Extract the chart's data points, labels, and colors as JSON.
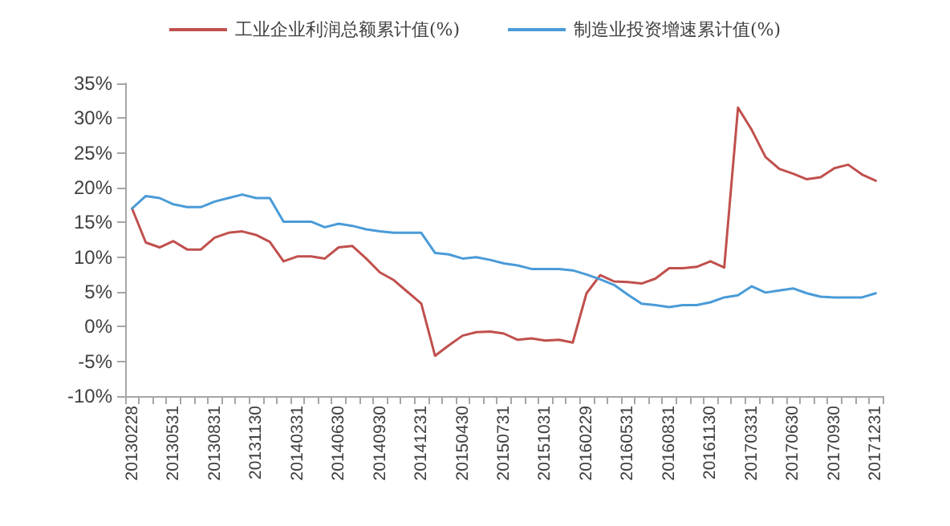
{
  "chart_data": {
    "type": "line",
    "categories": [
      "20130228",
      null,
      null,
      "20130531",
      null,
      null,
      "20130831",
      null,
      null,
      "20131130",
      null,
      null,
      "20140331",
      null,
      null,
      "20140630",
      null,
      null,
      "20140930",
      null,
      null,
      "20141231",
      null,
      null,
      "20150430",
      null,
      null,
      "20150731",
      null,
      null,
      "20151031",
      null,
      null,
      "20160229",
      null,
      null,
      "20160531",
      null,
      null,
      "20160831",
      null,
      null,
      "20161130",
      null,
      null,
      "20170331",
      null,
      null,
      "20170630",
      null,
      null,
      "20170930",
      null,
      null,
      "20171231"
    ],
    "series": [
      {
        "name": "工业企业利润总额累计值(%)",
        "color": "#c0504d",
        "values": [
          17,
          12.1,
          11.4,
          12.3,
          11.1,
          11.1,
          12.8,
          13.5,
          13.7,
          13.2,
          12.2,
          9.4,
          10.1,
          10.1,
          9.8,
          11.4,
          11.6,
          9.8,
          7.8,
          6.7,
          5.0,
          3.3,
          -4.2,
          -2.7,
          -1.3,
          -0.8,
          -0.7,
          -1.0,
          -1.9,
          -1.7,
          -2.0,
          -1.9,
          -2.3,
          4.8,
          7.4,
          6.5,
          6.4,
          6.2,
          6.9,
          8.4,
          8.4,
          8.6,
          9.4,
          8.5,
          31.5,
          28.3,
          24.4,
          22.7,
          22.0,
          21.2,
          21.5,
          22.8,
          23.3,
          21.9,
          21.0
        ]
      },
      {
        "name": "制造业投资增速累计值(%)",
        "color": "#4a9bd8",
        "values": [
          17,
          18.8,
          18.5,
          17.6,
          17.2,
          17.2,
          18.0,
          18.5,
          19.0,
          18.5,
          18.5,
          15.1,
          15.1,
          15.1,
          14.3,
          14.8,
          14.5,
          14.0,
          13.7,
          13.5,
          13.5,
          13.5,
          10.6,
          10.4,
          9.8,
          10.0,
          9.6,
          9.1,
          8.8,
          8.3,
          8.3,
          8.3,
          8.1,
          7.5,
          6.8,
          6.0,
          4.6,
          3.3,
          3.1,
          2.8,
          3.1,
          3.1,
          3.5,
          4.2,
          4.5,
          5.8,
          4.9,
          5.2,
          5.5,
          4.8,
          4.3,
          4.2,
          4.2,
          4.2,
          4.8
        ]
      }
    ],
    "ylim": [
      -10,
      35
    ],
    "yticks": [
      {
        "value": -10,
        "label": "-10%"
      },
      {
        "value": -5,
        "label": "-5%"
      },
      {
        "value": 0,
        "label": "0%"
      },
      {
        "value": 5,
        "label": "5%"
      },
      {
        "value": 10,
        "label": "10%"
      },
      {
        "value": 15,
        "label": "15%"
      },
      {
        "value": 20,
        "label": "20%"
      },
      {
        "value": 25,
        "label": "25%"
      },
      {
        "value": 30,
        "label": "30%"
      },
      {
        "value": 35,
        "label": "35%"
      }
    ],
    "grid": false,
    "legend": "top",
    "marker": "none",
    "line_style": "solid"
  }
}
